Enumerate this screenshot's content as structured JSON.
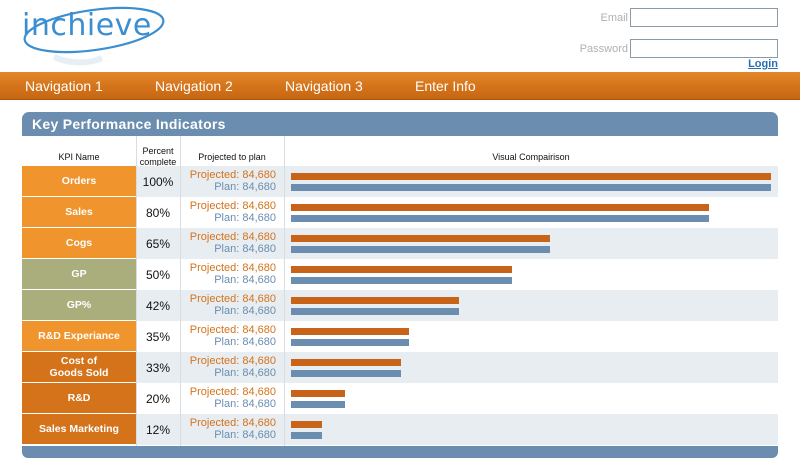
{
  "brand": {
    "logo_text": "inchieve"
  },
  "auth": {
    "email_label": "Email",
    "email_value": "",
    "password_label": "Password",
    "password_value": "",
    "login_label": "Login"
  },
  "nav": {
    "items": [
      {
        "label": "Navigation 1"
      },
      {
        "label": "Navigation 2"
      },
      {
        "label": "Navigation 3"
      },
      {
        "label": "Enter Info"
      }
    ]
  },
  "kpi": {
    "title": "Key Performance Indicators",
    "columns": {
      "name": "KPI Name",
      "percent": "Percent\ncomplete",
      "projected": "Projected to plan",
      "visual": "Visual Compairison"
    },
    "rows": [
      {
        "name": "Orders",
        "percent": "100%",
        "projected": "Projected: 84,680",
        "plan": "Plan: 84,680",
        "value": 1.0,
        "name_color": "#f0952e",
        "row_shade": true
      },
      {
        "name": "Sales",
        "percent": "80%",
        "projected": "Projected: 84,680",
        "plan": "Plan: 84,680",
        "value": 0.87,
        "name_color": "#f0952e",
        "row_shade": false
      },
      {
        "name": "Cogs",
        "percent": "65%",
        "projected": "Projected: 84,680",
        "plan": "Plan: 84,680",
        "value": 0.54,
        "name_color": "#f0952e",
        "row_shade": true
      },
      {
        "name": "GP",
        "percent": "50%",
        "projected": "Projected: 84,680",
        "plan": "Plan: 84,680",
        "value": 0.46,
        "name_color": "#a9ae7c",
        "row_shade": false
      },
      {
        "name": "GP%",
        "percent": "42%",
        "projected": "Projected: 84,680",
        "plan": "Plan: 84,680",
        "value": 0.35,
        "name_color": "#a9ae7c",
        "row_shade": true
      },
      {
        "name": "R&D Experiance",
        "percent": "35%",
        "projected": "Projected: 84,680",
        "plan": "Plan: 84,680",
        "value": 0.245,
        "name_color": "#f0952e",
        "row_shade": false
      },
      {
        "name": "Cost of\nGoods Sold",
        "percent": "33%",
        "projected": "Projected: 84,680",
        "plan": "Plan: 84,680",
        "value": 0.23,
        "name_color": "#d4731a",
        "row_shade": true
      },
      {
        "name": "R&D",
        "percent": "20%",
        "projected": "Projected: 84,680",
        "plan": "Plan: 84,680",
        "value": 0.113,
        "name_color": "#d4731a",
        "row_shade": false
      },
      {
        "name": "Sales Marketing",
        "percent": "12%",
        "projected": "Projected: 84,680",
        "plan": "Plan: 84,680",
        "value": 0.065,
        "name_color": "#d4731a",
        "row_shade": true
      }
    ]
  },
  "colors": {
    "nav_orange": "#d4731a",
    "panel_blue": "#6b8db0",
    "bar_orange": "#c8641a",
    "bar_blue": "#6b8db0",
    "row_shade": "#e8edf2"
  }
}
